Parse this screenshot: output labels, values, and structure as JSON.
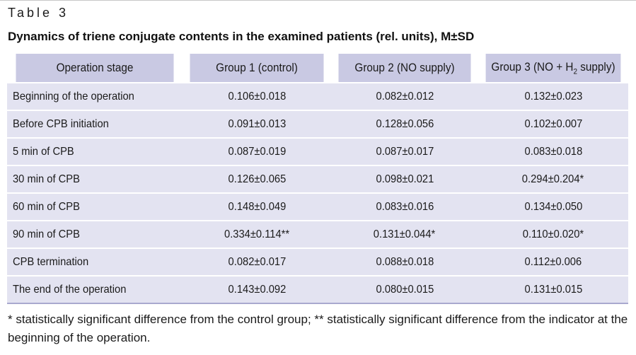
{
  "label": "Table 3",
  "caption": "Dynamics of triene conjugate contents in the examined patients (rel. units), M±SD",
  "headers": {
    "stage": "Operation stage",
    "g1": "Group 1 (control)",
    "g2": "Group 2 (NO supply)",
    "g3_pre": "Group 3 (NO + H",
    "g3_sub": "2",
    "g3_post": " supply)"
  },
  "rows": [
    {
      "stage": "Beginning of the operation",
      "g1": "0.106±0.018",
      "g2": "0.082±0.012",
      "g3": "0.132±0.023"
    },
    {
      "stage": "Before CPB initiation",
      "g1": "0.091±0.013",
      "g2": "0.128±0.056",
      "g3": "0.102±0.007"
    },
    {
      "stage": "5 min of CPB",
      "g1": "0.087±0.019",
      "g2": "0.087±0.017",
      "g3": "0.083±0.018"
    },
    {
      "stage": "30 min of CPB",
      "g1": "0.126±0.065",
      "g2": "0.098±0.021",
      "g3": "0.294±0.204*"
    },
    {
      "stage": "60 min of CPB",
      "g1": "0.148±0.049",
      "g2": "0.083±0.016",
      "g3": "0.134±0.050"
    },
    {
      "stage": "90 min of CPB",
      "g1": "0.334±0.114**",
      "g2": "0.131±0.044*",
      "g3": "0.110±0.020*"
    },
    {
      "stage": "CPB termination",
      "g1": "0.082±0.017",
      "g2": "0.088±0.018",
      "g3": "0.112±0.006"
    },
    {
      "stage": "The end of the operation",
      "g1": "0.143±0.092",
      "g2": "0.080±0.015",
      "g3": "0.131±0.015"
    }
  ],
  "footnote": "* statistically significant difference from the control group; ** statistically significant difference from the indicator at the beginning of the operation.",
  "colors": {
    "header_bg": "#c9c9e3",
    "row_bg": "#e3e3f1"
  }
}
